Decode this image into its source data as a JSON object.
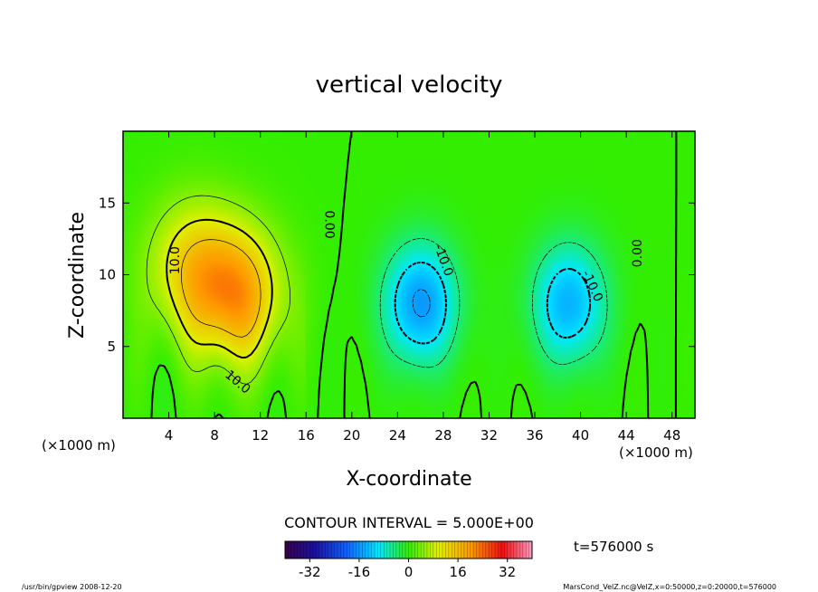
{
  "chart_data": {
    "type": "heatmap",
    "title": "vertical velocity",
    "xlabel": "X-coordinate",
    "ylabel": "Z-coordinate",
    "x_unit_left": "(×1000 m)",
    "x_unit_right": "(×1000 m)",
    "xlim": [
      0,
      50
    ],
    "ylim": [
      0,
      20
    ],
    "x_ticks": [
      "4",
      "8",
      "12",
      "16",
      "20",
      "24",
      "28",
      "32",
      "36",
      "40",
      "44",
      "48"
    ],
    "x_tick_values": [
      4,
      8,
      12,
      16,
      20,
      24,
      28,
      32,
      36,
      40,
      44,
      48
    ],
    "y_ticks": [
      "5",
      "10",
      "15"
    ],
    "y_tick_values": [
      5,
      10,
      15
    ],
    "contour_labels": [
      {
        "text": "10.0",
        "x": 4.6,
        "y": 11.0,
        "rotate": -90
      },
      {
        "text": "10.0",
        "x": 10.0,
        "y": 2.5,
        "rotate": 40
      },
      {
        "text": "0.00",
        "x": 18.0,
        "y": 13.5,
        "rotate": 90
      },
      {
        "text": "-10.0",
        "x": 28.0,
        "y": 11.0,
        "rotate": 70
      },
      {
        "text": "-10.0",
        "x": 41.0,
        "y": 9.2,
        "rotate": 65
      },
      {
        "text": "0.00",
        "x": 45.0,
        "y": 11.5,
        "rotate": -90
      }
    ],
    "updrafts": [
      {
        "x": 10.0,
        "z": 8.5,
        "peak": 18
      },
      {
        "x": 6.0,
        "z": 10.5,
        "peak": 12
      }
    ],
    "downdrafts": [
      {
        "x": 26.0,
        "z": 8.0,
        "peak": -16
      },
      {
        "x": 39.0,
        "z": 8.0,
        "peak": -14
      }
    ],
    "contour_interval_text": "CONTOUR INTERVAL = 5.000E+00",
    "colorbar": {
      "min": -40,
      "max": 40,
      "ticks": [
        "-32",
        "-16",
        "0",
        "16",
        "32"
      ],
      "tick_values": [
        -32,
        -16,
        0,
        16,
        32
      ]
    },
    "time_text": "t=576000 s",
    "footer_left": "/usr/bin/gpview   2008-12-20",
    "footer_right": "MarsCond_VelZ.nc@VelZ,x=0:50000,z=0:20000,t=576000"
  },
  "colors": {
    "zero": "#33ee00",
    "positive_peak": "#ff9a00",
    "negative_peak": "#00ffff"
  }
}
